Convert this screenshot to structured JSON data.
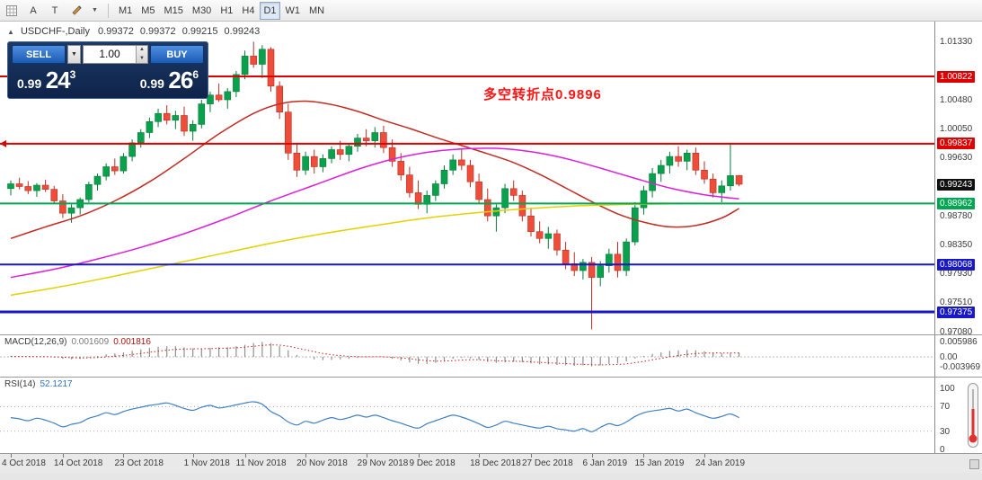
{
  "icons": {
    "collapse": "▲",
    "caret_down": "▼",
    "spin_up": "▲",
    "spin_down": "▼"
  },
  "toolbar": {
    "tools": [
      {
        "name": "new-chart",
        "label": ""
      },
      {
        "name": "cursor-tool",
        "label": "A"
      },
      {
        "name": "text-tool",
        "label": "T"
      },
      {
        "name": "draw-tool",
        "label": ""
      }
    ],
    "timeframes": [
      "M1",
      "M5",
      "M15",
      "M30",
      "H1",
      "H4",
      "D1",
      "W1",
      "MN"
    ],
    "active_timeframe": "D1"
  },
  "chart": {
    "title_symbol": "USDCHF-,Daily",
    "ohlc": {
      "open": "0.99372",
      "high": "0.99372",
      "low": "0.99215",
      "close": "0.99243"
    },
    "trade_panel": {
      "sell_label": "SELL",
      "buy_label": "BUY",
      "lot": "1.00",
      "sell_price": {
        "prefix": "0.99",
        "big": "24",
        "sup": "3"
      },
      "buy_price": {
        "prefix": "0.99",
        "big": "26",
        "sup": "6"
      }
    },
    "annotation": {
      "text": "多空转折点0.9896",
      "color": "#ff1414"
    },
    "price_axis": [
      {
        "text": "1.01330",
        "price": 1.0133,
        "style": "plain"
      },
      {
        "text": "1.00822",
        "price": 1.00822,
        "style": "red"
      },
      {
        "text": "1.00480",
        "price": 1.0048,
        "style": "plain"
      },
      {
        "text": "1.00050",
        "price": 1.0005,
        "style": "plain"
      },
      {
        "text": "0.99837",
        "price": 0.99837,
        "style": "red"
      },
      {
        "text": "0.99630",
        "price": 0.9963,
        "style": "plain"
      },
      {
        "text": "0.99243",
        "price": 0.99243,
        "style": "black"
      },
      {
        "text": "0.98962",
        "price": 0.98962,
        "style": "green"
      },
      {
        "text": "0.98780",
        "price": 0.9878,
        "style": "plain"
      },
      {
        "text": "0.98350",
        "price": 0.9835,
        "style": "plain"
      },
      {
        "text": "0.98068",
        "price": 0.98068,
        "style": "blue"
      },
      {
        "text": "0.97930",
        "price": 0.9793,
        "style": "plain"
      },
      {
        "text": "0.97510",
        "price": 0.9751,
        "style": "plain"
      },
      {
        "text": "0.97375",
        "price": 0.97375,
        "style": "blue"
      },
      {
        "text": "0.97080",
        "price": 0.9708,
        "style": "plain"
      }
    ],
    "hlines": [
      {
        "price": 1.00822,
        "color": "#dd0000",
        "width": 2
      },
      {
        "price": 0.99837,
        "color": "#dd0000",
        "width": 2
      },
      {
        "price": 0.98962,
        "color": "#00a651",
        "width": 2
      },
      {
        "price": 0.98068,
        "color": "#1818c8",
        "width": 2
      },
      {
        "price": 0.97375,
        "color": "#1818c8",
        "width": 3
      }
    ]
  },
  "chart_data": {
    "type": "candlestick",
    "symbol": "USDCHF",
    "period": "Daily",
    "ylim": [
      0.9708,
      1.0133
    ],
    "x_ticks": [
      {
        "label": "4 Oct 2018",
        "i": 0
      },
      {
        "label": "14 Oct 2018",
        "i": 6
      },
      {
        "label": "23 Oct 2018",
        "i": 13
      },
      {
        "label": "1 Nov 2018",
        "i": 21
      },
      {
        "label": "11 Nov 2018",
        "i": 27
      },
      {
        "label": "20 Nov 2018",
        "i": 34
      },
      {
        "label": "29 Nov 2018",
        "i": 41
      },
      {
        "label": "9 Dec 2018",
        "i": 47
      },
      {
        "label": "18 Dec 2018",
        "i": 54
      },
      {
        "label": "27 Dec 2018",
        "i": 60
      },
      {
        "label": "6 Jan 2019",
        "i": 67
      },
      {
        "label": "15 Jan 2019",
        "i": 73
      },
      {
        "label": "24 Jan 2019",
        "i": 80
      }
    ],
    "candles": [
      [
        0.9918,
        0.993,
        0.9908,
        0.9925
      ],
      [
        0.9925,
        0.9934,
        0.9917,
        0.9921
      ],
      [
        0.9921,
        0.9929,
        0.991,
        0.9915
      ],
      [
        0.9915,
        0.9926,
        0.9906,
        0.9923
      ],
      [
        0.9923,
        0.9931,
        0.9913,
        0.9917
      ],
      [
        0.9917,
        0.9922,
        0.9896,
        0.99
      ],
      [
        0.99,
        0.991,
        0.9875,
        0.9882
      ],
      [
        0.9882,
        0.9895,
        0.9868,
        0.989
      ],
      [
        0.989,
        0.9905,
        0.988,
        0.9902
      ],
      [
        0.9902,
        0.9928,
        0.9898,
        0.9924
      ],
      [
        0.9924,
        0.994,
        0.9915,
        0.9936
      ],
      [
        0.9936,
        0.9955,
        0.993,
        0.995
      ],
      [
        0.995,
        0.9962,
        0.9938,
        0.9944
      ],
      [
        0.9944,
        0.997,
        0.994,
        0.9965
      ],
      [
        0.9965,
        0.999,
        0.9958,
        0.9985
      ],
      [
        0.9985,
        1.0005,
        0.9978,
        1.0
      ],
      [
        1.0,
        1.0022,
        0.9992,
        1.0016
      ],
      [
        1.0016,
        1.0035,
        1.0008,
        1.0028
      ],
      [
        1.0028,
        1.004,
        1.0012,
        1.0018
      ],
      [
        1.0018,
        1.0032,
        1.0005,
        1.0025
      ],
      [
        1.0025,
        1.0038,
        0.9995,
        1.0002
      ],
      [
        1.0002,
        1.0018,
        0.9988,
        1.0012
      ],
      [
        1.0012,
        1.0048,
        1.0006,
        1.0042
      ],
      [
        1.0042,
        1.006,
        1.003,
        1.0055
      ],
      [
        1.0055,
        1.0072,
        1.0045,
        1.0048
      ],
      [
        1.0048,
        1.0065,
        1.0035,
        1.006
      ],
      [
        1.006,
        1.009,
        1.0052,
        1.0085
      ],
      [
        1.0085,
        1.012,
        1.0078,
        1.0112
      ],
      [
        1.0112,
        1.0133,
        1.0095,
        1.01
      ],
      [
        1.01,
        1.0128,
        1.008,
        1.0122
      ],
      [
        1.0122,
        1.0125,
        1.006,
        1.0068
      ],
      [
        1.0068,
        1.0075,
        1.002,
        1.003
      ],
      [
        1.003,
        1.0042,
        0.996,
        0.997
      ],
      [
        0.997,
        0.9985,
        0.9935,
        0.9945
      ],
      [
        0.9945,
        0.9972,
        0.9938,
        0.9965
      ],
      [
        0.9965,
        0.9975,
        0.994,
        0.995
      ],
      [
        0.995,
        0.9968,
        0.9942,
        0.9962
      ],
      [
        0.9962,
        0.998,
        0.9955,
        0.9975
      ],
      [
        0.9975,
        0.9988,
        0.996,
        0.9968
      ],
      [
        0.9968,
        0.9985,
        0.9958,
        0.998
      ],
      [
        0.998,
        0.9998,
        0.9972,
        0.9992
      ],
      [
        0.9992,
        1.0005,
        0.998,
        0.9988
      ],
      [
        0.9988,
        1.0008,
        0.9978,
        1.0
      ],
      [
        1.0,
        1.001,
        0.997,
        0.9978
      ],
      [
        0.9978,
        0.999,
        0.995,
        0.9958
      ],
      [
        0.9958,
        0.997,
        0.993,
        0.9938
      ],
      [
        0.9938,
        0.995,
        0.9905,
        0.9912
      ],
      [
        0.9912,
        0.993,
        0.9888,
        0.9895
      ],
      [
        0.9895,
        0.9915,
        0.9882,
        0.9908
      ],
      [
        0.9908,
        0.993,
        0.99,
        0.9925
      ],
      [
        0.9925,
        0.9952,
        0.9918,
        0.9945
      ],
      [
        0.9945,
        0.9968,
        0.9938,
        0.996
      ],
      [
        0.996,
        0.9975,
        0.9945,
        0.9952
      ],
      [
        0.9952,
        0.996,
        0.992,
        0.9928
      ],
      [
        0.9928,
        0.994,
        0.9895,
        0.9902
      ],
      [
        0.9902,
        0.9918,
        0.987,
        0.9878
      ],
      [
        0.9878,
        0.9895,
        0.9855,
        0.989
      ],
      [
        0.989,
        0.9925,
        0.9882,
        0.9918
      ],
      [
        0.9918,
        0.993,
        0.99,
        0.9908
      ],
      [
        0.9908,
        0.9915,
        0.987,
        0.9878
      ],
      [
        0.9878,
        0.989,
        0.9848,
        0.9855
      ],
      [
        0.9855,
        0.987,
        0.9838,
        0.9845
      ],
      [
        0.9845,
        0.9862,
        0.983,
        0.9852
      ],
      [
        0.9852,
        0.9858,
        0.982,
        0.9828
      ],
      [
        0.9828,
        0.984,
        0.98,
        0.9808
      ],
      [
        0.9808,
        0.9825,
        0.979,
        0.9798
      ],
      [
        0.9798,
        0.9815,
        0.9785,
        0.981
      ],
      [
        0.981,
        0.9818,
        0.9712,
        0.9788
      ],
      [
        0.9788,
        0.9812,
        0.9775,
        0.9805
      ],
      [
        0.9805,
        0.983,
        0.9795,
        0.9822
      ],
      [
        0.9822,
        0.984,
        0.9788,
        0.9798
      ],
      [
        0.9798,
        0.9845,
        0.979,
        0.984
      ],
      [
        0.984,
        0.9898,
        0.9835,
        0.989
      ],
      [
        0.989,
        0.9922,
        0.988,
        0.9915
      ],
      [
        0.9915,
        0.9948,
        0.9905,
        0.994
      ],
      [
        0.994,
        0.996,
        0.9928,
        0.9952
      ],
      [
        0.9952,
        0.9972,
        0.994,
        0.9965
      ],
      [
        0.9965,
        0.998,
        0.995,
        0.9958
      ],
      [
        0.9958,
        0.9975,
        0.9945,
        0.997
      ],
      [
        0.997,
        0.9978,
        0.9938,
        0.9945
      ],
      [
        0.9945,
        0.9958,
        0.9925,
        0.9932
      ],
      [
        0.9932,
        0.994,
        0.9905,
        0.9912
      ],
      [
        0.9912,
        0.993,
        0.9898,
        0.9922
      ],
      [
        0.9922,
        0.9985,
        0.9915,
        0.9937
      ],
      [
        0.99372,
        0.99372,
        0.99215,
        0.99243
      ]
    ],
    "moving_averages": [
      {
        "name": "ma-fast-red",
        "color": "#c22b22",
        "points": [
          [
            0,
            0.9845
          ],
          [
            4,
            0.9862
          ],
          [
            8,
            0.9878
          ],
          [
            12,
            0.99
          ],
          [
            16,
            0.9928
          ],
          [
            20,
            0.9962
          ],
          [
            24,
            0.9998
          ],
          [
            28,
            1.0028
          ],
          [
            31,
            1.0042
          ],
          [
            34,
            1.0046
          ],
          [
            37,
            1.0041
          ],
          [
            40,
            1.0031
          ],
          [
            43,
            1.0018
          ],
          [
            46,
            1.0006
          ],
          [
            49,
            0.9993
          ],
          [
            52,
            0.9981
          ],
          [
            55,
            0.9969
          ],
          [
            58,
            0.9956
          ],
          [
            61,
            0.9939
          ],
          [
            64,
            0.9919
          ],
          [
            67,
            0.9899
          ],
          [
            70,
            0.9881
          ],
          [
            73,
            0.9869
          ],
          [
            76,
            0.9862
          ],
          [
            79,
            0.9864
          ],
          [
            82,
            0.9875
          ],
          [
            84,
            0.9889
          ]
        ]
      },
      {
        "name": "ma-mid-magenta",
        "color": "#dc1edc",
        "points": [
          [
            0,
            0.9788
          ],
          [
            5,
            0.98
          ],
          [
            10,
            0.9815
          ],
          [
            15,
            0.9832
          ],
          [
            20,
            0.9852
          ],
          [
            25,
            0.9875
          ],
          [
            30,
            0.99
          ],
          [
            35,
            0.9923
          ],
          [
            40,
            0.9946
          ],
          [
            44,
            0.9961
          ],
          [
            48,
            0.9971
          ],
          [
            52,
            0.9976
          ],
          [
            56,
            0.9977
          ],
          [
            60,
            0.9972
          ],
          [
            64,
            0.9962
          ],
          [
            68,
            0.9948
          ],
          [
            72,
            0.9933
          ],
          [
            76,
            0.9919
          ],
          [
            80,
            0.9909
          ],
          [
            84,
            0.9903
          ]
        ]
      },
      {
        "name": "ma-slow-yellow",
        "color": "#e3d200",
        "points": [
          [
            0,
            0.9762
          ],
          [
            6,
            0.9775
          ],
          [
            12,
            0.979
          ],
          [
            18,
            0.9806
          ],
          [
            24,
            0.9822
          ],
          [
            30,
            0.9838
          ],
          [
            36,
            0.9852
          ],
          [
            42,
            0.9864
          ],
          [
            48,
            0.9875
          ],
          [
            54,
            0.9883
          ],
          [
            60,
            0.9889
          ],
          [
            66,
            0.9893
          ],
          [
            72,
            0.9895
          ],
          [
            78,
            0.9896
          ],
          [
            84,
            0.9896
          ]
        ]
      }
    ],
    "macd": {
      "label": "MACD(12,26,9)",
      "value_main": "0.001609",
      "value_signal": "0.001816",
      "axis_labels": [
        {
          "text": "0.005986",
          "v": 0.005986
        },
        {
          "text": "0.00",
          "v": 0
        },
        {
          "text": "-0.003969",
          "v": -0.003969
        }
      ],
      "values": [
        0.0002,
        0.0001,
        0.0,
        -0.0001,
        0.0,
        -0.0003,
        -0.0008,
        -0.001,
        -0.0008,
        -0.0003,
        0.0003,
        0.001,
        0.0014,
        0.0018,
        0.0024,
        0.003,
        0.0036,
        0.004,
        0.0042,
        0.0042,
        0.0038,
        0.0034,
        0.0034,
        0.0036,
        0.0038,
        0.0038,
        0.0042,
        0.0048,
        0.0055,
        0.006,
        0.0055,
        0.0042,
        0.0026,
        0.0008,
        -0.0002,
        -0.001,
        -0.0013,
        -0.0012,
        -0.001,
        -0.0008,
        -0.0004,
        -0.0002,
        0.0,
        -0.0002,
        -0.0008,
        -0.0014,
        -0.0022,
        -0.0028,
        -0.0028,
        -0.0024,
        -0.0016,
        -0.0008,
        -0.0004,
        -0.0006,
        -0.0012,
        -0.002,
        -0.0024,
        -0.0022,
        -0.002,
        -0.0022,
        -0.0026,
        -0.003,
        -0.003,
        -0.0032,
        -0.0034,
        -0.0036,
        -0.0034,
        -0.0038,
        -0.0034,
        -0.0028,
        -0.0026,
        -0.0018,
        -0.0006,
        0.0004,
        0.0012,
        0.0018,
        0.0024,
        0.0026,
        0.0028,
        0.0026,
        0.0022,
        0.0018,
        0.0015,
        0.0016,
        0.001609
      ]
    },
    "rsi": {
      "label": "RSI(14)",
      "value": "52.1217",
      "axis_labels": [
        {
          "text": "100",
          "v": 100
        },
        {
          "text": "70",
          "v": 70
        },
        {
          "text": "30",
          "v": 30
        },
        {
          "text": "0",
          "v": 0
        }
      ],
      "levels": [
        70,
        30
      ],
      "values": [
        52,
        50,
        47,
        51,
        48,
        43,
        37,
        41,
        44,
        51,
        55,
        60,
        57,
        62,
        66,
        69,
        72,
        74,
        76,
        72,
        67,
        64,
        69,
        72,
        68,
        70,
        73,
        76,
        78,
        74,
        62,
        55,
        45,
        40,
        46,
        43,
        48,
        52,
        49,
        52,
        56,
        53,
        56,
        52,
        47,
        43,
        38,
        35,
        42,
        47,
        52,
        56,
        53,
        48,
        42,
        36,
        40,
        46,
        43,
        40,
        37,
        35,
        38,
        34,
        32,
        30,
        34,
        29,
        36,
        42,
        39,
        45,
        54,
        60,
        63,
        65,
        67,
        63,
        66,
        60,
        55,
        51,
        54,
        58,
        52.12
      ]
    }
  }
}
